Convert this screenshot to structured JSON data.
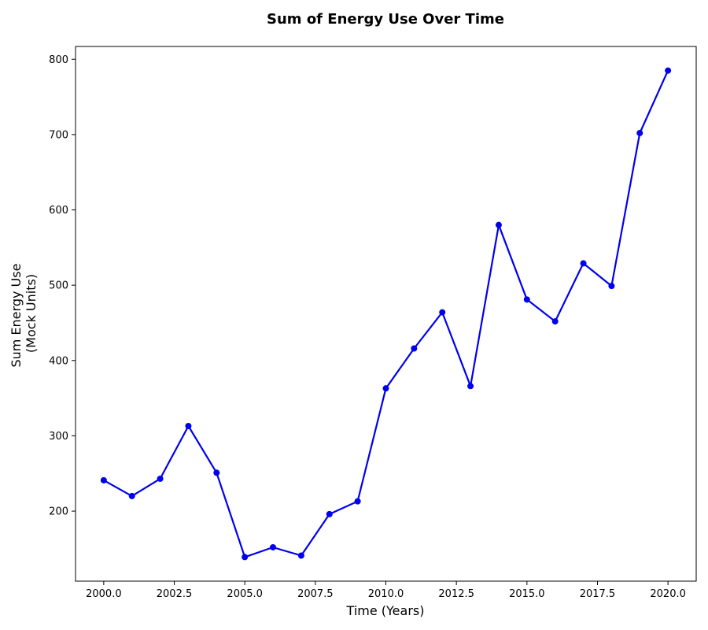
{
  "chart_data": {
    "type": "line",
    "title": "Sum of Energy Use Over Time",
    "xlabel": "Time (Years)",
    "ylabel_lines": [
      "Sum Energy Use",
      "(Mock Units)"
    ],
    "xlim": [
      1999.0,
      2021.0
    ],
    "ylim": [
      107,
      817
    ],
    "xticks": [
      2000.0,
      2002.5,
      2005.0,
      2007.5,
      2010.0,
      2012.5,
      2015.0,
      2017.5,
      2020.0
    ],
    "xtick_labels": [
      "2000.0",
      "2002.5",
      "2005.0",
      "2007.5",
      "2010.0",
      "2012.5",
      "2015.0",
      "2017.5",
      "2020.0"
    ],
    "yticks": [
      200,
      300,
      400,
      500,
      600,
      700,
      800
    ],
    "ytick_labels": [
      "200",
      "300",
      "400",
      "500",
      "600",
      "700",
      "800"
    ],
    "grid": false,
    "series": [
      {
        "color": "#0000ee",
        "x": [
          2000,
          2001,
          2002,
          2003,
          2004,
          2005,
          2006,
          2007,
          2008,
          2009,
          2010,
          2011,
          2012,
          2013,
          2014,
          2015,
          2016,
          2017,
          2018,
          2019,
          2020
        ],
        "y": [
          241,
          220,
          243,
          313,
          251,
          139,
          152,
          141,
          196,
          213,
          363,
          416,
          464,
          366,
          580,
          481,
          452,
          529,
          499,
          702,
          785
        ]
      }
    ]
  }
}
